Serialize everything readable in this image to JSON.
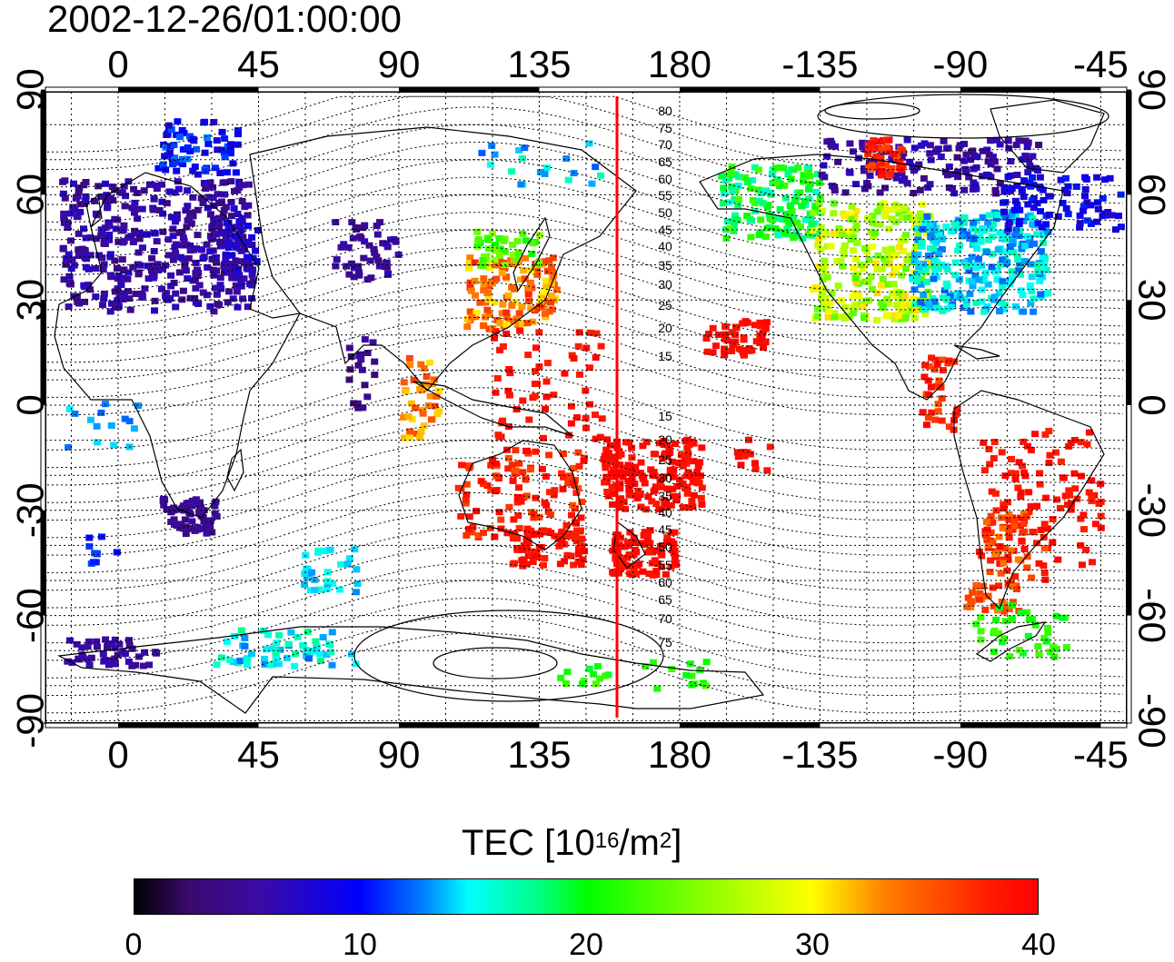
{
  "title": "2002-12-26/01:00:00",
  "map": {
    "type": "world-map-tec",
    "lon_ticks_top": [
      "0",
      "45",
      "90",
      "135",
      "180",
      "-135",
      "-90",
      "-45"
    ],
    "lon_ticks_bottom": [
      "0",
      "45",
      "90",
      "135",
      "180",
      "-135",
      "-90",
      "-45"
    ],
    "lat_ticks_left": [
      "90",
      "60",
      "30",
      "0",
      "-30",
      "-60",
      "-90"
    ],
    "lat_ticks_right": [
      "90",
      "60",
      "30",
      "0",
      "-30",
      "-60",
      "-90"
    ],
    "magnetic_latitude_labels_north": [
      "80",
      "75",
      "70",
      "65",
      "60",
      "55",
      "50",
      "45",
      "40",
      "35",
      "30",
      "25",
      "20",
      "15"
    ],
    "magnetic_latitude_labels_south": [
      "15",
      "20",
      "25",
      "30",
      "35",
      "40",
      "45",
      "50",
      "55",
      "60",
      "65",
      "70",
      "75"
    ],
    "meridian_line_lon": 165,
    "meridian_line_color": "#ff0000"
  },
  "colorbar": {
    "label_main": "TEC  [10",
    "label_exp1": "16",
    "label_mid": "/m",
    "label_exp2": "2",
    "label_end": "]",
    "ticks": [
      "0",
      "10",
      "20",
      "30",
      "40"
    ],
    "range": [
      0,
      40
    ],
    "colors": [
      "#000000",
      "#3b0aa5",
      "#0000ff",
      "#00ffff",
      "#00ff00",
      "#ffff00",
      "#ff0000"
    ]
  }
}
